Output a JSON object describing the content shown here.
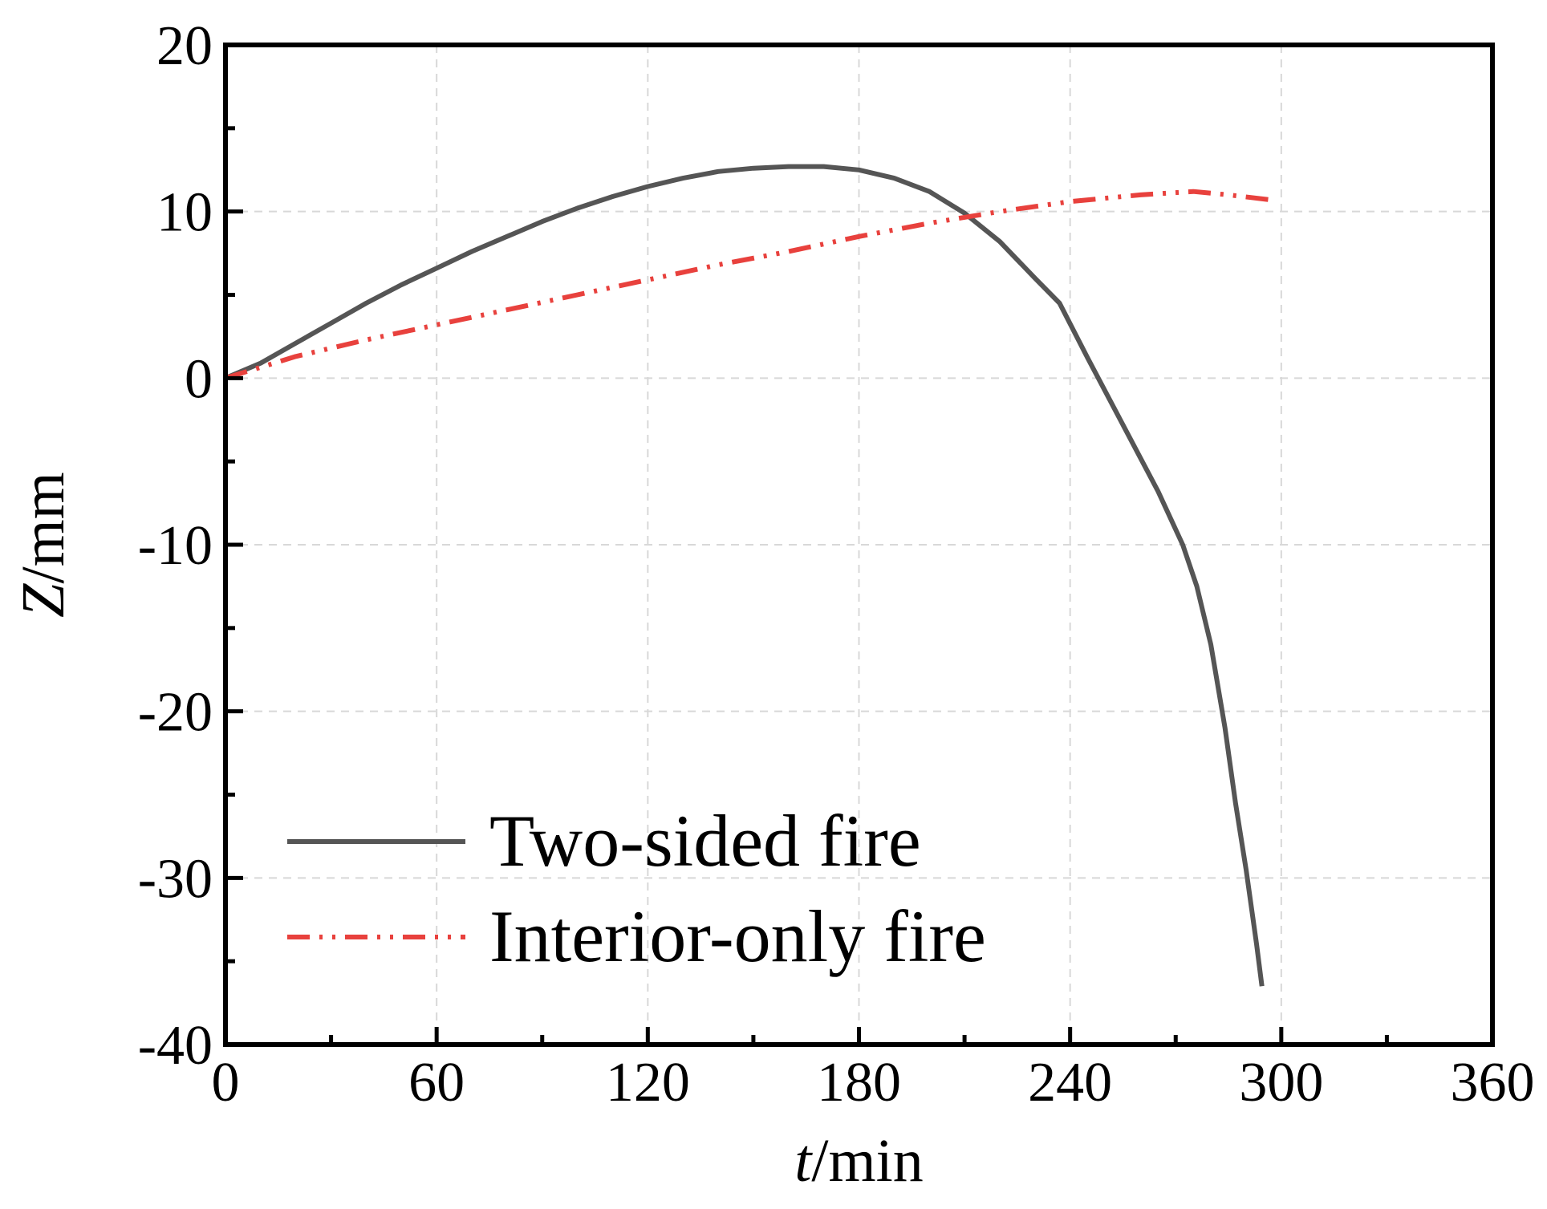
{
  "chart_data": {
    "type": "line",
    "xlabel": {
      "italic": "t",
      "rest": "/min"
    },
    "ylabel": {
      "italic": "Z",
      "rest": "/mm"
    },
    "xlim": [
      0,
      360
    ],
    "ylim": [
      -40,
      20
    ],
    "xticks": [
      0,
      60,
      120,
      180,
      240,
      300,
      360
    ],
    "yticks": [
      -40,
      -30,
      -20,
      -10,
      0,
      10,
      20
    ],
    "xtick_labels": [
      "0",
      "60",
      "120",
      "180",
      "240",
      "300",
      "360"
    ],
    "ytick_labels": [
      "-40",
      "-30",
      "-20",
      "-10",
      "0",
      "10",
      "20"
    ],
    "grid": true,
    "legend_position": "bottom-left",
    "series": [
      {
        "name": "Two-sided fire",
        "color": "#555555",
        "style": "solid",
        "x": [
          0,
          10,
          20,
          30,
          40,
          50,
          60,
          70,
          80,
          90,
          100,
          110,
          120,
          130,
          140,
          150,
          160,
          170,
          180,
          190,
          200,
          210,
          220,
          230,
          237,
          245,
          255,
          265,
          272,
          276,
          280,
          284,
          287,
          290,
          293,
          294.5
        ],
        "y": [
          0,
          0.9,
          2.1,
          3.3,
          4.5,
          5.6,
          6.6,
          7.6,
          8.5,
          9.4,
          10.2,
          10.9,
          11.5,
          12.0,
          12.4,
          12.6,
          12.7,
          12.7,
          12.5,
          12.0,
          11.2,
          9.9,
          8.2,
          6.0,
          4.5,
          1.2,
          -2.8,
          -6.8,
          -10.0,
          -12.5,
          -16.0,
          -21.0,
          -25.5,
          -29.5,
          -34.0,
          -36.5
        ]
      },
      {
        "name": "Interior-only fire",
        "color": "#e8413d",
        "style": "dash-dot-dot",
        "x": [
          0,
          20,
          40,
          60,
          80,
          100,
          120,
          140,
          160,
          180,
          200,
          220,
          240,
          260,
          275,
          285,
          297
        ],
        "y": [
          0,
          1.3,
          2.3,
          3.2,
          4.1,
          5.0,
          5.9,
          6.8,
          7.6,
          8.5,
          9.3,
          10.0,
          10.6,
          11.0,
          11.2,
          11.0,
          10.7
        ]
      }
    ]
  }
}
